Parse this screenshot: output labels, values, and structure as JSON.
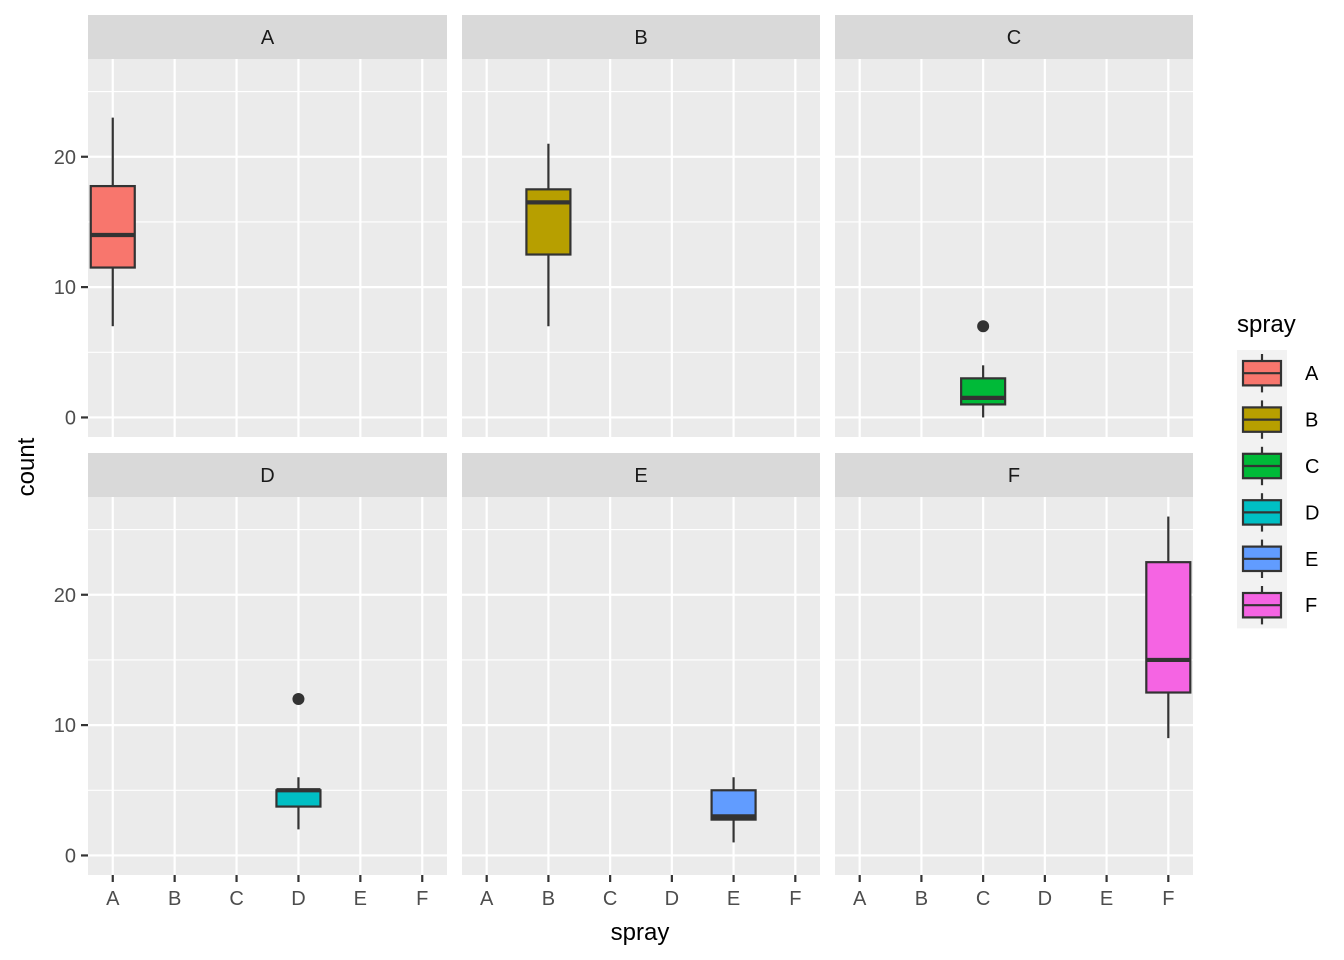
{
  "chart_data": {
    "type": "boxplot",
    "facet_by": "spray",
    "xlabel": "spray",
    "ylabel": "count",
    "categories": [
      "A",
      "B",
      "C",
      "D",
      "E",
      "F"
    ],
    "y_ticks": [
      0,
      10,
      20
    ],
    "ylim": [
      -1.5,
      27.5
    ],
    "grid": true,
    "legend": {
      "title": "spray",
      "position": "right",
      "items": [
        "A",
        "B",
        "C",
        "D",
        "E",
        "F"
      ]
    },
    "panels": [
      {
        "label": "A",
        "category": "A",
        "color": "#F8766D",
        "box": {
          "min": 7,
          "q1": 11.5,
          "median": 14,
          "q3": 17.75,
          "max": 23
        },
        "outliers": []
      },
      {
        "label": "B",
        "category": "B",
        "color": "#B79F00",
        "box": {
          "min": 7,
          "q1": 12.5,
          "median": 16.5,
          "q3": 17.5,
          "max": 21
        },
        "outliers": []
      },
      {
        "label": "C",
        "category": "C",
        "color": "#00BA38",
        "box": {
          "min": 0,
          "q1": 1,
          "median": 1.5,
          "q3": 3,
          "max": 4
        },
        "outliers": [
          7
        ]
      },
      {
        "label": "D",
        "category": "D",
        "color": "#00BFC4",
        "box": {
          "min": 2,
          "q1": 3.75,
          "median": 5,
          "q3": 5,
          "max": 6
        },
        "outliers": [
          12
        ]
      },
      {
        "label": "E",
        "category": "E",
        "color": "#619CFF",
        "box": {
          "min": 1,
          "q1": 2.75,
          "median": 3,
          "q3": 5,
          "max": 6
        },
        "outliers": []
      },
      {
        "label": "F",
        "category": "F",
        "color": "#F564E3",
        "box": {
          "min": 9,
          "q1": 12.5,
          "median": 15,
          "q3": 22.5,
          "max": 26
        },
        "outliers": []
      }
    ]
  }
}
